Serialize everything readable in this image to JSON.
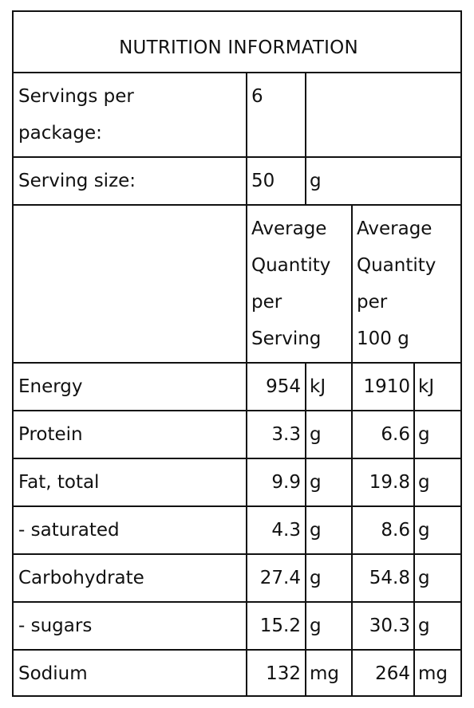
{
  "panel": {
    "title": "NUTRITION INFORMATION",
    "servings_label": "Servings per package:",
    "servings_label_lines": [
      "Servings per",
      "package:"
    ],
    "servings_value": "6",
    "serving_size_label": "Serving size:",
    "serving_size_value": "50",
    "serving_size_unit": "g",
    "col_per_serving_lines": [
      "Average",
      "Quantity",
      "per",
      "Serving"
    ],
    "col_per_100g_lines": [
      "Average",
      "Quantity",
      "per",
      "100 g"
    ]
  },
  "nutrients": [
    {
      "name": "Energy",
      "serving": "954",
      "serving_unit": "kJ",
      "per100": "1910",
      "per100_unit": "kJ"
    },
    {
      "name": "Protein",
      "serving": "3.3",
      "serving_unit": "g",
      "per100": "6.6",
      "per100_unit": "g"
    },
    {
      "name": "Fat, total",
      "serving": "9.9",
      "serving_unit": "g",
      "per100": "19.8",
      "per100_unit": "g"
    },
    {
      "name": "- saturated",
      "serving": "4.3",
      "serving_unit": "g",
      "per100": "8.6",
      "per100_unit": "g"
    },
    {
      "name": "Carbohydrate",
      "serving": "27.4",
      "serving_unit": "g",
      "per100": "54.8",
      "per100_unit": "g"
    },
    {
      "name": "- sugars",
      "serving": "15.2",
      "serving_unit": "g",
      "per100": "30.3",
      "per100_unit": "g"
    },
    {
      "name": "Sodium",
      "serving": "132",
      "serving_unit": "mg",
      "per100": "264",
      "per100_unit": "mg"
    }
  ]
}
